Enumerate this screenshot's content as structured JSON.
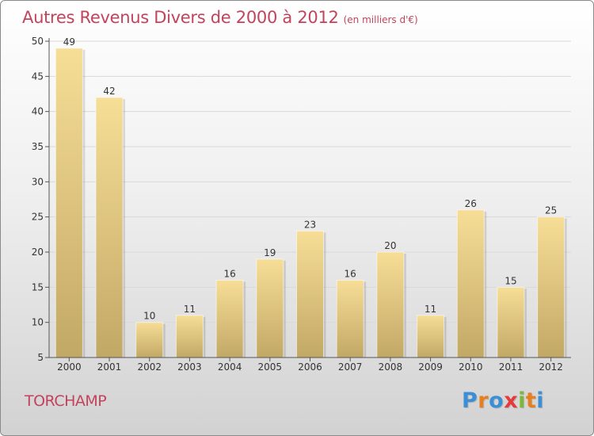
{
  "header": {
    "title": "Autres Revenus Divers de 2000 à 2012",
    "subtitle": "(en milliers d'€)"
  },
  "footer": {
    "commune": "TORCHAMP",
    "brand": "Proxiti",
    "brand_colors": [
      "#3b8fd6",
      "#e57f1f",
      "#3b8fd6",
      "#e53b3b",
      "#7bb83a",
      "#e57f1f",
      "#3b8fd6"
    ]
  },
  "colors": {
    "bar_top": "#f7de97",
    "bar_bottom": "#c2a865",
    "axis": "#555555",
    "grid": "#d9d9d9",
    "text": "#333333"
  },
  "chart_data": {
    "type": "bar",
    "title": "Autres Revenus Divers de 2000 à 2012",
    "subtitle": "(en milliers d'€)",
    "xlabel": "",
    "ylabel": "",
    "categories": [
      "2000",
      "2001",
      "2002",
      "2003",
      "2004",
      "2005",
      "2006",
      "2007",
      "2008",
      "2009",
      "2010",
      "2011",
      "2012"
    ],
    "values": [
      49,
      42,
      10,
      11,
      16,
      19,
      23,
      16,
      20,
      11,
      26,
      15,
      25
    ],
    "ylim": [
      5,
      50
    ],
    "yticks": [
      5,
      10,
      15,
      20,
      25,
      30,
      35,
      40,
      45,
      50
    ],
    "grid": true,
    "legend": "none"
  }
}
